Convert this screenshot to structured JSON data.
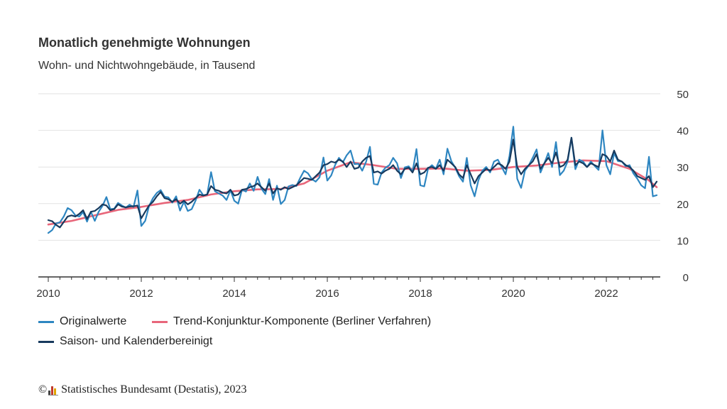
{
  "title": "Monatlich genehmigte Wohnungen",
  "subtitle": "Wohn- und Nichtwohngebäude, in Tausend",
  "footer": {
    "copyright_symbol": "©",
    "text": "Statistisches Bundesamt (Destatis), 2023"
  },
  "colors": {
    "original": "#2e86c1",
    "trend": "#e8667a",
    "adjusted": "#173a5e",
    "grid": "#e2e2e2",
    "axis": "#333333"
  },
  "chart_data": {
    "type": "line",
    "title": "Monatlich genehmigte Wohnungen",
    "subtitle": "Wohn- und Nichtwohngebäude, in Tausend",
    "x_ticks": [
      "2010",
      "2012",
      "2014",
      "2016",
      "2018",
      "2020",
      "2022"
    ],
    "y_ticks": [
      "0",
      "10",
      "20",
      "30",
      "40",
      "50"
    ],
    "x_range": [
      2010.0,
      2023.083
    ],
    "ylim": [
      0,
      50
    ],
    "y_axis_position": "right",
    "grid": true,
    "legend_position": "bottom",
    "series": [
      {
        "name": "Originalwerte",
        "color": "#2e86c1",
        "start": "2010-01",
        "values": [
          12,
          12.8,
          14.6,
          14.9,
          16.5,
          18.8,
          18.2,
          16.8,
          16.5,
          17.7,
          15.1,
          17.8,
          15.3,
          17.8,
          19.4,
          21.8,
          18.5,
          18.6,
          20.2,
          19.5,
          18.9,
          19.7,
          19.1,
          23.6,
          13.9,
          15.3,
          19.3,
          21.5,
          22.9,
          23.7,
          21.9,
          21.7,
          20.3,
          22.0,
          18.1,
          20.5,
          18.0,
          18.5,
          20.8,
          23.8,
          22.3,
          22.5,
          28.6,
          23.4,
          22.8,
          22.2,
          21.0,
          23.7,
          20.8,
          20.0,
          23.8,
          23.3,
          25.5,
          23.5,
          27.3,
          24.1,
          22.6,
          26.7,
          21.0,
          24.9,
          19.9,
          21.0,
          24.7,
          25.1,
          24.8,
          27.0,
          29.0,
          28.3,
          26.7,
          26.0,
          27.2,
          32.6,
          26.3,
          27.7,
          30.5,
          32.5,
          31.3,
          33.2,
          34.5,
          30.8,
          30.9,
          29.0,
          31.4,
          35.5,
          25.4,
          25.2,
          28.5,
          29.8,
          30.5,
          32.5,
          31.0,
          27.0,
          29.9,
          30.2,
          28.7,
          34.9,
          25.0,
          24.7,
          29.6,
          30.5,
          29.5,
          32.0,
          28.0,
          35.0,
          31.6,
          29.8,
          27.5,
          26.0,
          32.5,
          25.0,
          22.0,
          26.4,
          29.0,
          30.0,
          28.5,
          31.5,
          32.0,
          30.0,
          28.0,
          33.0,
          41.0,
          26.8,
          24.3,
          29.0,
          30.5,
          32.5,
          34.8,
          28.5,
          31.0,
          33.8,
          30.0,
          36.8,
          27.8,
          29.0,
          31.5,
          38.0,
          29.4,
          32.0,
          31.5,
          30.0,
          31.5,
          30.3,
          29.2,
          40.0,
          30.5,
          28.0,
          33.8,
          31.6,
          31.5,
          30.2,
          30.5,
          28.2,
          26.8,
          25.0,
          24.2,
          32.8,
          22.0,
          22.3
        ]
      },
      {
        "name": "Trend-Konjunktur-Komponente (Berliner Verfahren)",
        "color": "#e8667a",
        "points": [
          [
            2010.0,
            14.3
          ],
          [
            2010.5,
            15.3
          ],
          [
            2011.0,
            16.8
          ],
          [
            2011.5,
            18.3
          ],
          [
            2012.0,
            19.1
          ],
          [
            2012.5,
            20.2
          ],
          [
            2013.0,
            21.0
          ],
          [
            2013.5,
            22.5
          ],
          [
            2014.0,
            23.4
          ],
          [
            2014.5,
            23.9
          ],
          [
            2015.0,
            24.0
          ],
          [
            2015.5,
            25.5
          ],
          [
            2016.0,
            29.0
          ],
          [
            2016.5,
            31.3
          ],
          [
            2017.0,
            30.5
          ],
          [
            2017.5,
            29.5
          ],
          [
            2018.0,
            29.5
          ],
          [
            2018.5,
            29.6
          ],
          [
            2019.0,
            29.0
          ],
          [
            2019.5,
            29.2
          ],
          [
            2020.0,
            30.0
          ],
          [
            2020.5,
            30.4
          ],
          [
            2021.0,
            31.2
          ],
          [
            2021.5,
            31.8
          ],
          [
            2022.0,
            31.6
          ],
          [
            2022.5,
            29.5
          ],
          [
            2022.9,
            26.5
          ],
          [
            2023.083,
            24.5
          ]
        ]
      },
      {
        "name": "Saison- und Kalenderbereinigt",
        "color": "#173a5e",
        "start": "2010-01",
        "values": [
          15.5,
          15.2,
          14.2,
          13.5,
          15.0,
          16.5,
          16.8,
          16.5,
          17.2,
          18.2,
          15.8,
          17.8,
          18.0,
          18.8,
          19.8,
          19.5,
          18.2,
          18.5,
          19.8,
          19.2,
          19.0,
          19.2,
          19.3,
          19.5,
          16.0,
          17.8,
          19.5,
          20.5,
          22.0,
          23.2,
          21.5,
          21.2,
          20.5,
          21.2,
          20.0,
          20.8,
          19.8,
          20.5,
          21.5,
          22.5,
          22.2,
          22.5,
          24.8,
          23.8,
          23.5,
          23.0,
          22.8,
          23.8,
          22.2,
          22.5,
          23.8,
          24.0,
          24.5,
          24.8,
          25.5,
          24.5,
          23.5,
          25.5,
          22.8,
          24.2,
          23.8,
          24.5,
          24.0,
          24.5,
          25.0,
          26.0,
          27.0,
          26.8,
          26.5,
          27.5,
          28.5,
          30.5,
          30.8,
          31.5,
          31.2,
          32.0,
          31.5,
          30.0,
          31.5,
          29.5,
          29.8,
          31.5,
          32.5,
          33.0,
          28.5,
          28.8,
          28.2,
          29.0,
          29.5,
          30.5,
          29.0,
          28.0,
          29.5,
          29.8,
          28.5,
          31.0,
          28.0,
          28.5,
          29.8,
          30.0,
          29.5,
          30.5,
          29.0,
          32.0,
          31.0,
          30.0,
          28.0,
          27.0,
          30.5,
          28.0,
          25.5,
          27.5,
          28.5,
          29.5,
          29.0,
          30.0,
          31.0,
          30.5,
          29.5,
          31.5,
          37.5,
          30.0,
          28.0,
          29.5,
          30.5,
          31.5,
          33.5,
          29.5,
          31.0,
          32.5,
          31.0,
          34.0,
          30.0,
          30.5,
          32.0,
          38.0,
          30.5,
          31.5,
          31.0,
          30.0,
          31.0,
          30.5,
          30.0,
          33.5,
          33.0,
          31.5,
          34.5,
          32.0,
          31.5,
          30.5,
          30.0,
          29.0,
          27.5,
          27.0,
          26.5,
          27.5,
          24.5,
          26.0
        ]
      }
    ]
  }
}
